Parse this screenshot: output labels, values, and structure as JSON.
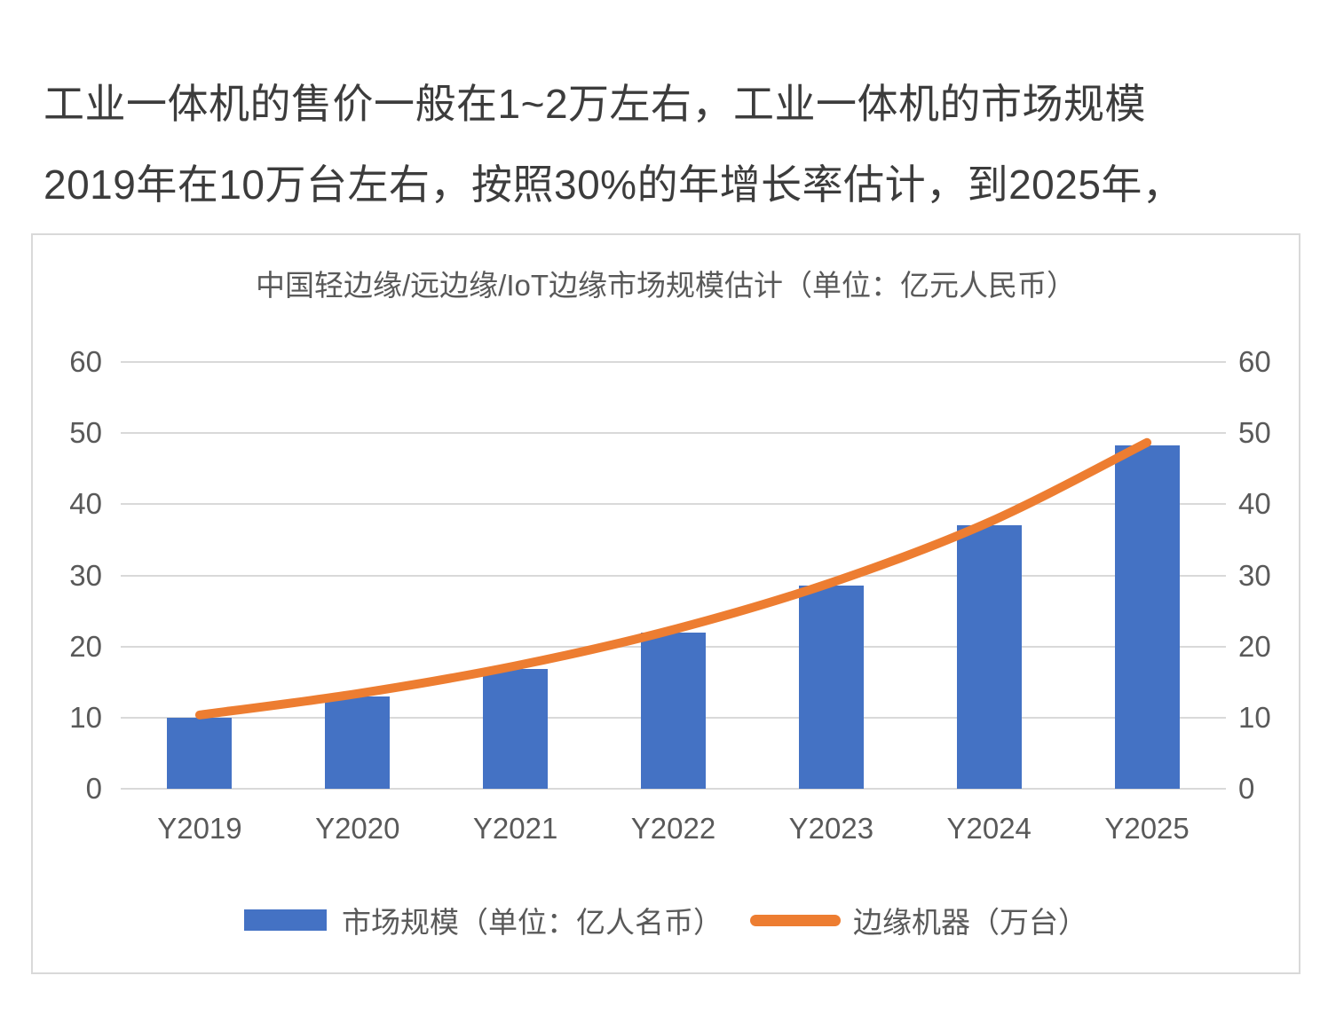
{
  "intro": {
    "lines": [
      "工业一体机的售价一般在1~2万左右，工业一体机的市场规模",
      "2019年在10万台左右，按照30%的年增长率估计，到2025年，"
    ]
  },
  "chart_data": {
    "type": "bar",
    "title": "中国轻边缘/远边缘/IoT边缘市场规模估计（单位：亿元人民币）",
    "categories": [
      "Y2019",
      "Y2020",
      "Y2021",
      "Y2022",
      "Y2023",
      "Y2024",
      "Y2025"
    ],
    "series": [
      {
        "name": "市场规模（单位：亿人名币）",
        "type": "bar",
        "color": "#4472C4",
        "values": [
          10,
          13,
          16.9,
          22,
          28.6,
          37.1,
          48.3
        ]
      },
      {
        "name": "边缘机器（万台）",
        "type": "line",
        "color": "#ED7D31",
        "values": [
          10,
          13,
          16.9,
          22,
          28.6,
          37.1,
          48.3
        ]
      }
    ],
    "xlabel": "",
    "ylabel": "",
    "ylim": [
      0,
      60
    ],
    "y_ticks": [
      0,
      10,
      20,
      30,
      40,
      50,
      60
    ],
    "dual_axis": true,
    "grid": true,
    "legend_position": "bottom"
  },
  "colors": {
    "bar_blue": "#4472C4",
    "line_orange": "#ED7D31",
    "grid": "#D9D9D9",
    "axis_text": "#595959",
    "body_text": "#3C3C3C",
    "card_border": "#D9D9D9"
  }
}
